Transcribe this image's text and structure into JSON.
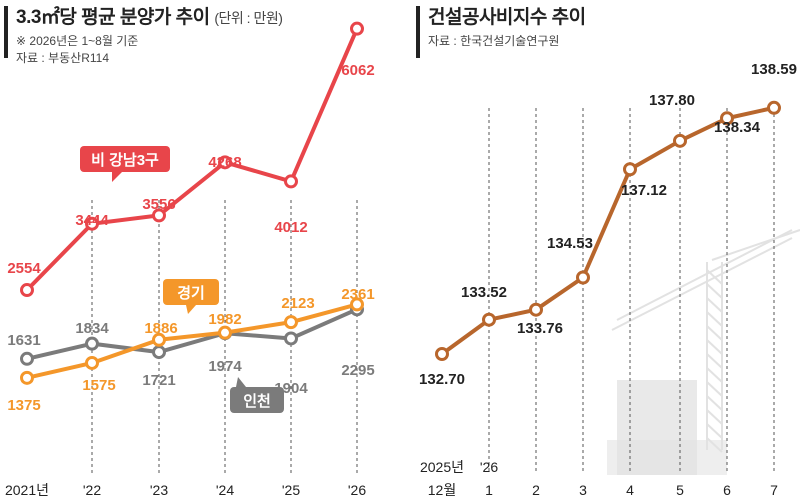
{
  "colors": {
    "gangnam_excl": "#e8454a",
    "gyeonggi": "#f4972a",
    "incheon": "#7b7b7b",
    "construction": "#b8662c",
    "guide": "#555555",
    "crane": "#e2e2e2"
  },
  "left": {
    "title": "3.3㎡당 평균 분양가 추이",
    "unit": "(단위 : 만원)",
    "note": "※ 2026년은 1~8월 기준",
    "source": "자료 : 부동산R114"
  },
  "right": {
    "title": "건설공사비지수 추이",
    "source": "자료 : 한국건설기술연구원"
  },
  "chart_data": [
    {
      "type": "line",
      "categories": [
        "2021년",
        "'22",
        "'23",
        "'24",
        "'25",
        "'26"
      ],
      "series": [
        {
          "name": "비 강남3구",
          "values": [
            2554,
            3444,
            3556,
            4268,
            4012,
            6062
          ],
          "color": "#e8454a"
        },
        {
          "name": "경기",
          "values": [
            1375,
            1575,
            1886,
            1982,
            2123,
            2361
          ],
          "color": "#f4972a"
        },
        {
          "name": "인천",
          "values": [
            1631,
            1834,
            1721,
            1974,
            1904,
            2295
          ],
          "color": "#7b7b7b"
        }
      ],
      "title": "3.3㎡당 평균 분양가 추이",
      "unit": "(단위 : 만원)",
      "grid": "dashed vertical lines at each year",
      "legend": "inline labels"
    },
    {
      "type": "line",
      "categories_top": [
        "2025년",
        "'26",
        "",
        "",
        "",
        "",
        "",
        ""
      ],
      "categories": [
        "12월",
        "1",
        "2",
        "3",
        "4",
        "5",
        "6",
        "7"
      ],
      "series": [
        {
          "values": [
            132.7,
            133.52,
            133.76,
            134.53,
            137.12,
            137.8,
            138.34,
            138.59
          ],
          "color": "#b8662c"
        }
      ],
      "title": "건설공사비지수 추이",
      "grid": "dashed vertical lines at each month",
      "legend": "none"
    }
  ]
}
